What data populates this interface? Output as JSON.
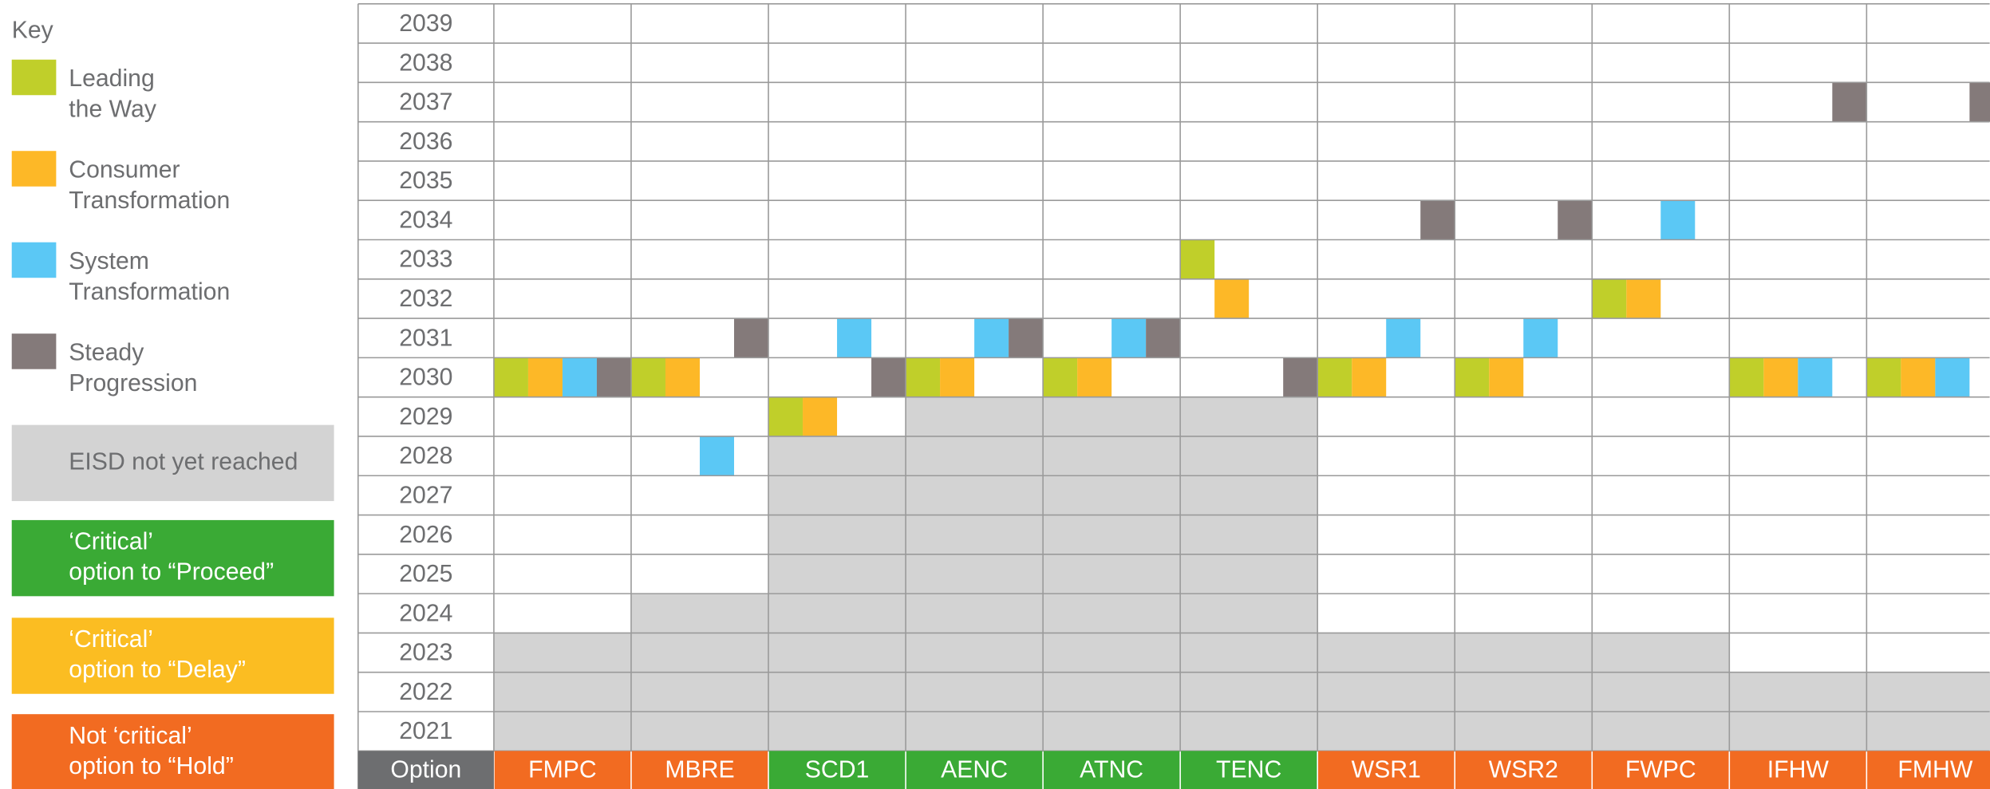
{
  "key": {
    "title": "Key",
    "scenarios": [
      {
        "label": [
          "Leading",
          "the Way"
        ],
        "color": "#c0cf2a"
      },
      {
        "label": [
          "Consumer",
          "Transformation"
        ],
        "color": "#fdb827"
      },
      {
        "label": [
          "System",
          "Transformation"
        ],
        "color": "#5bc8f5"
      },
      {
        "label": [
          "Steady",
          "Progression"
        ],
        "color": "#847a7a"
      }
    ],
    "statuses": [
      {
        "label": [
          "EISD not yet reached"
        ],
        "color": "#d3d3d3",
        "text_color": "#6d6e70"
      },
      {
        "label": [
          "‘Critical’",
          "option to “Proceed”"
        ],
        "color": "#3aaa35",
        "text_color": "#ffffff"
      },
      {
        "label": [
          "‘Critical’",
          "option to “Delay”"
        ],
        "color": "#fbbd22",
        "text_color": "#ffffff"
      },
      {
        "label": [
          "Not ‘critical’",
          "option to “Hold”"
        ],
        "color": "#f26b21",
        "text_color": "#ffffff"
      }
    ]
  },
  "grid": {
    "header": "Option",
    "header_color": "#6d6e70",
    "years": [
      2039,
      2038,
      2037,
      2036,
      2035,
      2034,
      2033,
      2032,
      2031,
      2030,
      2029,
      2028,
      2027,
      2026,
      2025,
      2024,
      2023,
      2022,
      2021
    ],
    "options": [
      {
        "name": "FMPC",
        "color": "#f26b21",
        "eisd_not_reached_through": 2023,
        "scenario_years": [
          2030,
          2030,
          2030,
          2030
        ]
      },
      {
        "name": "MBRE",
        "color": "#f26b21",
        "eisd_not_reached_through": 2024,
        "scenario_years": [
          2030,
          2030,
          2028,
          2031
        ]
      },
      {
        "name": "SCD1",
        "color": "#3aaa35",
        "eisd_not_reached_through": 2028,
        "scenario_years": [
          2029,
          2029,
          2031,
          2030
        ]
      },
      {
        "name": "AENC",
        "color": "#3aaa35",
        "eisd_not_reached_through": 2029,
        "scenario_years": [
          2030,
          2030,
          2031,
          2031
        ]
      },
      {
        "name": "ATNC",
        "color": "#3aaa35",
        "eisd_not_reached_through": 2029,
        "scenario_years": [
          2030,
          2030,
          2031,
          2031
        ]
      },
      {
        "name": "TENC",
        "color": "#3aaa35",
        "eisd_not_reached_through": 2029,
        "scenario_years": [
          2033,
          2032,
          null,
          2030
        ]
      },
      {
        "name": "WSR1",
        "color": "#f26b21",
        "eisd_not_reached_through": 2023,
        "scenario_years": [
          2030,
          2030,
          2031,
          2034
        ]
      },
      {
        "name": "WSR2",
        "color": "#f26b21",
        "eisd_not_reached_through": 2023,
        "scenario_years": [
          2030,
          2030,
          2031,
          2034
        ]
      },
      {
        "name": "FWPC",
        "color": "#f26b21",
        "eisd_not_reached_through": 2023,
        "scenario_years": [
          2032,
          2032,
          2034,
          null
        ]
      },
      {
        "name": "IFHW",
        "color": "#f26b21",
        "eisd_not_reached_through": 2022,
        "scenario_years": [
          2030,
          2030,
          2030,
          2037
        ]
      },
      {
        "name": "FMHW",
        "color": "#f26b21",
        "eisd_not_reached_through": 2022,
        "scenario_years": [
          2030,
          2030,
          2030,
          2037
        ]
      }
    ]
  }
}
